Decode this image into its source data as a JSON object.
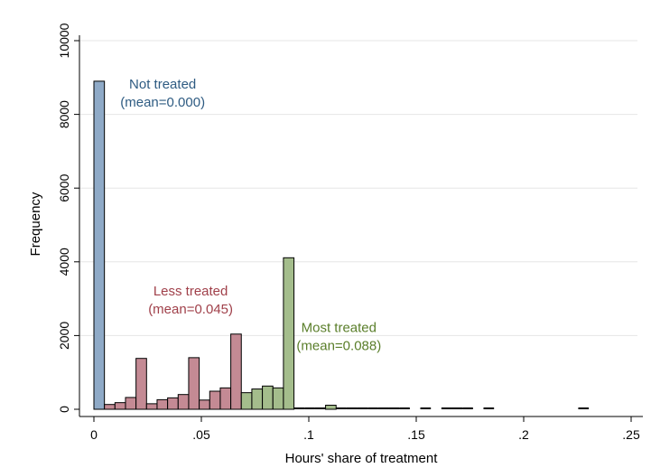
{
  "chart_data": {
    "type": "bar",
    "title": "",
    "xlabel": "Hours' share of treatment",
    "ylabel": "Frequency",
    "xlim": [
      0,
      0.25
    ],
    "ylim": [
      0,
      10000
    ],
    "x_ticks": [
      {
        "value": 0,
        "label": "0"
      },
      {
        "value": 0.05,
        "label": ".05"
      },
      {
        "value": 0.1,
        "label": ".1"
      },
      {
        "value": 0.15,
        "label": ".15"
      },
      {
        "value": 0.2,
        "label": ".2"
      },
      {
        "value": 0.25,
        "label": ".25"
      }
    ],
    "y_ticks": [
      {
        "value": 0,
        "label": "0"
      },
      {
        "value": 2000,
        "label": "2000"
      },
      {
        "value": 4000,
        "label": "4000"
      },
      {
        "value": 6000,
        "label": "6000"
      },
      {
        "value": 8000,
        "label": "8000"
      },
      {
        "value": 10000,
        "label": "10000"
      }
    ],
    "grid": true,
    "legend": "none",
    "colors": {
      "not_treated": "#8faac7",
      "less_treated": "#c48a94",
      "most_treated": "#a4bd8c",
      "other": "#000000",
      "outline": "#000000"
    },
    "series": [
      {
        "group": "not_treated",
        "bars": [
          {
            "x0": 0,
            "x1": 0.0049,
            "y": 8900
          }
        ]
      },
      {
        "group": "less_treated",
        "bars": [
          {
            "x0": 0.0049,
            "x1": 0.0098,
            "y": 130
          },
          {
            "x0": 0.0098,
            "x1": 0.0147,
            "y": 180
          },
          {
            "x0": 0.0147,
            "x1": 0.0196,
            "y": 320
          },
          {
            "x0": 0.0196,
            "x1": 0.0245,
            "y": 1380
          },
          {
            "x0": 0.0245,
            "x1": 0.0294,
            "y": 150
          },
          {
            "x0": 0.0294,
            "x1": 0.0343,
            "y": 260
          },
          {
            "x0": 0.0343,
            "x1": 0.0392,
            "y": 310
          },
          {
            "x0": 0.0392,
            "x1": 0.0441,
            "y": 400
          },
          {
            "x0": 0.0441,
            "x1": 0.049,
            "y": 1400
          },
          {
            "x0": 0.049,
            "x1": 0.0539,
            "y": 250
          },
          {
            "x0": 0.0539,
            "x1": 0.0588,
            "y": 490
          },
          {
            "x0": 0.0588,
            "x1": 0.0637,
            "y": 580
          },
          {
            "x0": 0.0637,
            "x1": 0.0686,
            "y": 2040
          }
        ]
      },
      {
        "group": "most_treated",
        "bars": [
          {
            "x0": 0.0686,
            "x1": 0.0735,
            "y": 450
          },
          {
            "x0": 0.0735,
            "x1": 0.0784,
            "y": 550
          },
          {
            "x0": 0.0784,
            "x1": 0.0833,
            "y": 630
          },
          {
            "x0": 0.0833,
            "x1": 0.0882,
            "y": 580
          },
          {
            "x0": 0.0882,
            "x1": 0.0931,
            "y": 4110
          },
          {
            "x0": 0.1078,
            "x1": 0.1127,
            "y": 110
          }
        ]
      },
      {
        "group": "other",
        "bars": [
          {
            "x0": 0.0931,
            "x1": 0.098,
            "y": 15
          },
          {
            "x0": 0.098,
            "x1": 0.1029,
            "y": 15
          },
          {
            "x0": 0.1029,
            "x1": 0.1078,
            "y": 15
          },
          {
            "x0": 0.1127,
            "x1": 0.1176,
            "y": 15
          },
          {
            "x0": 0.1176,
            "x1": 0.1225,
            "y": 15
          },
          {
            "x0": 0.1225,
            "x1": 0.1274,
            "y": 15
          },
          {
            "x0": 0.1274,
            "x1": 0.1323,
            "y": 15
          },
          {
            "x0": 0.1323,
            "x1": 0.1372,
            "y": 15
          },
          {
            "x0": 0.1372,
            "x1": 0.1421,
            "y": 15
          },
          {
            "x0": 0.1421,
            "x1": 0.147,
            "y": 15
          },
          {
            "x0": 0.1519,
            "x1": 0.1568,
            "y": 15
          },
          {
            "x0": 0.1617,
            "x1": 0.1666,
            "y": 15
          },
          {
            "x0": 0.1666,
            "x1": 0.1715,
            "y": 15
          },
          {
            "x0": 0.1715,
            "x1": 0.1764,
            "y": 15
          },
          {
            "x0": 0.1813,
            "x1": 0.1862,
            "y": 15
          },
          {
            "x0": 0.2254,
            "x1": 0.2303,
            "y": 15
          }
        ]
      }
    ],
    "annotations": [
      {
        "lines": [
          "Not treated",
          "(mean=0.000)"
        ],
        "color": "#2e5b82",
        "x": 0.032,
        "y": 8700
      },
      {
        "lines": [
          "Less treated",
          "(mean=0.045)"
        ],
        "color": "#a0404a",
        "x": 0.045,
        "y": 3090
      },
      {
        "lines": [
          "Most treated",
          "(mean=0.088)"
        ],
        "color": "#5a7e2a",
        "x": 0.114,
        "y": 2090
      }
    ]
  }
}
